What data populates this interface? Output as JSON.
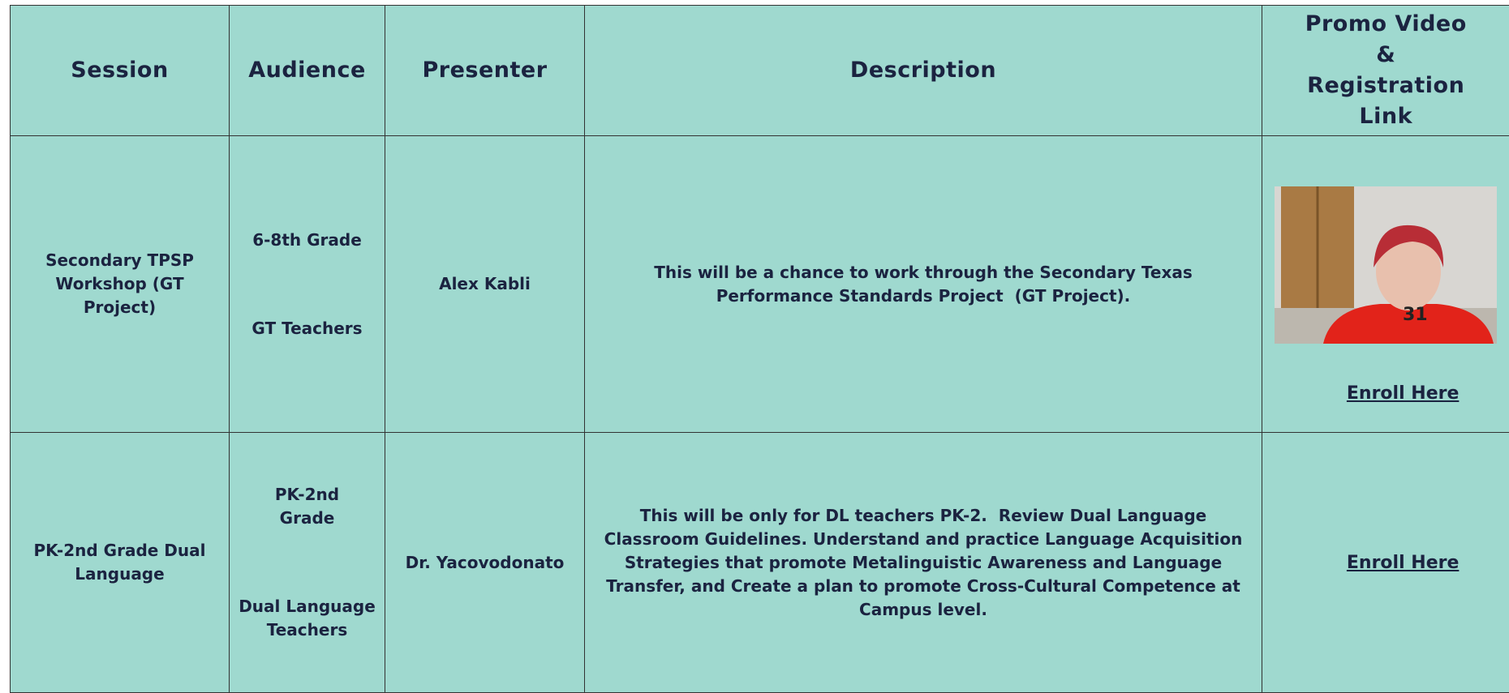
{
  "table": {
    "headers": [
      "Session",
      "Audience",
      "Presenter",
      "Description",
      "Promo Video & Registration Link"
    ],
    "rows": [
      {
        "session": "Secondary TPSP Workshop (GT Project)",
        "audience": [
          "6-8th Grade",
          "GT Teachers"
        ],
        "presenter": "Alex Kabli",
        "description": "This will be a chance to work through the Secondary Texas Performance Standards Project  (GT Project).",
        "video_overlay": "31",
        "link": "Enroll Here"
      },
      {
        "session": "PK-2nd Grade Dual Language",
        "audience": [
          "PK-2nd Grade",
          "Dual Language Teachers"
        ],
        "presenter": "Dr. Yacovodonato",
        "description": "This will be only for DL teachers PK-2.  Review Dual Language Classroom Guidelines. Understand and practice Language Acquisition Strategies that promote Metalinguistic Awareness and Language Transfer, and Create a plan to promote Cross-Cultural Competence at Campus level.",
        "link": "Enroll Here"
      }
    ]
  }
}
